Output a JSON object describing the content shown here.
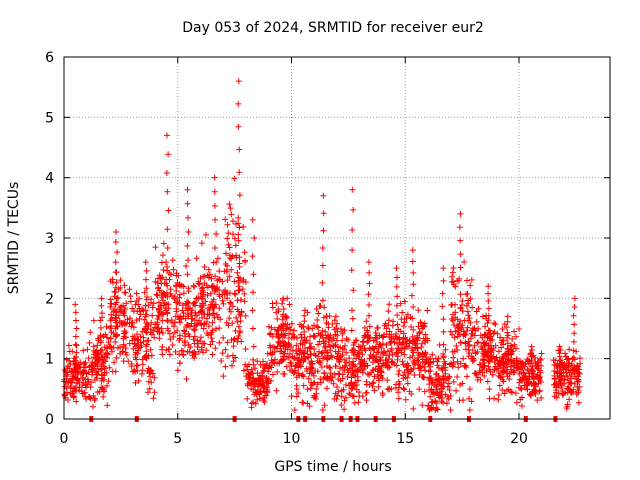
{
  "chart_data": {
    "type": "scatter",
    "title": "Day 053 of 2024, SRMTID for receiver eur2",
    "xlabel": "GPS time / hours",
    "ylabel": "SRMTID / TECUs",
    "xlim": [
      0,
      24
    ],
    "ylim": [
      0,
      6
    ],
    "xticks": [
      0,
      5,
      10,
      15,
      20
    ],
    "xtick_labels": [
      "0",
      "5",
      "10",
      "15",
      "20"
    ],
    "yticks": [
      0,
      1,
      2,
      3,
      4,
      5,
      6
    ],
    "ytick_labels": [
      "0",
      "1",
      "2",
      "3",
      "4",
      "5",
      "6"
    ],
    "grid": true,
    "marker": "plus",
    "color": "#ff0000",
    "gap_markers_x": [
      1.2,
      3.2,
      7.5,
      10.3,
      10.6,
      11.4,
      12.2,
      12.6,
      12.9,
      13.7,
      14.5,
      16.1,
      17.8,
      20.3,
      21.6
    ],
    "series_segments": [
      {
        "x_start": 0.0,
        "x_end": 1.0,
        "y_center": 0.7,
        "spread": 0.35,
        "peak": 1.9
      },
      {
        "x_start": 1.0,
        "x_end": 2.0,
        "y_center": 0.9,
        "spread": 0.45,
        "peak": 2.0
      },
      {
        "x_start": 2.0,
        "x_end": 3.0,
        "y_center": 1.6,
        "spread": 0.6,
        "peak": 3.1
      },
      {
        "x_start": 3.0,
        "x_end": 4.0,
        "y_center": 1.3,
        "spread": 0.7,
        "peak": 2.6
      },
      {
        "x_start": 4.0,
        "x_end": 5.0,
        "y_center": 1.9,
        "spread": 0.7,
        "peak": 4.7
      },
      {
        "x_start": 5.0,
        "x_end": 6.0,
        "y_center": 1.7,
        "spread": 0.6,
        "peak": 3.8
      },
      {
        "x_start": 6.0,
        "x_end": 7.0,
        "y_center": 1.9,
        "spread": 0.7,
        "peak": 4.0
      },
      {
        "x_start": 7.0,
        "x_end": 8.0,
        "y_center": 2.2,
        "spread": 1.0,
        "peak": 5.6
      },
      {
        "x_start": 8.0,
        "x_end": 9.0,
        "y_center": 0.6,
        "spread": 0.3,
        "peak": 3.3
      },
      {
        "x_start": 9.0,
        "x_end": 10.0,
        "y_center": 1.2,
        "spread": 0.5,
        "peak": 2.0
      },
      {
        "x_start": 10.0,
        "x_end": 11.0,
        "y_center": 1.0,
        "spread": 0.5,
        "peak": 1.8
      },
      {
        "x_start": 11.0,
        "x_end": 12.0,
        "y_center": 1.1,
        "spread": 0.6,
        "peak": 3.7
      },
      {
        "x_start": 12.0,
        "x_end": 13.0,
        "y_center": 0.8,
        "spread": 0.5,
        "peak": 3.8
      },
      {
        "x_start": 13.0,
        "x_end": 14.0,
        "y_center": 1.0,
        "spread": 0.5,
        "peak": 2.6
      },
      {
        "x_start": 14.0,
        "x_end": 15.0,
        "y_center": 1.1,
        "spread": 0.5,
        "peak": 2.5
      },
      {
        "x_start": 15.0,
        "x_end": 16.0,
        "y_center": 1.1,
        "spread": 0.5,
        "peak": 2.8
      },
      {
        "x_start": 16.0,
        "x_end": 17.0,
        "y_center": 0.6,
        "spread": 0.4,
        "peak": 2.5
      },
      {
        "x_start": 17.0,
        "x_end": 18.0,
        "y_center": 1.4,
        "spread": 0.8,
        "peak": 3.4
      },
      {
        "x_start": 18.0,
        "x_end": 19.0,
        "y_center": 1.1,
        "spread": 0.5,
        "peak": 2.2
      },
      {
        "x_start": 19.0,
        "x_end": 20.0,
        "y_center": 0.9,
        "spread": 0.4,
        "peak": 1.7
      },
      {
        "x_start": 20.0,
        "x_end": 21.0,
        "y_center": 0.7,
        "spread": 0.3,
        "peak": 1.2
      },
      {
        "x_start": 21.5,
        "x_end": 22.0,
        "y_center": 0.7,
        "spread": 0.3,
        "peak": 1.2
      },
      {
        "x_start": 22.0,
        "x_end": 22.7,
        "y_center": 0.7,
        "spread": 0.35,
        "peak": 2.0
      }
    ]
  }
}
